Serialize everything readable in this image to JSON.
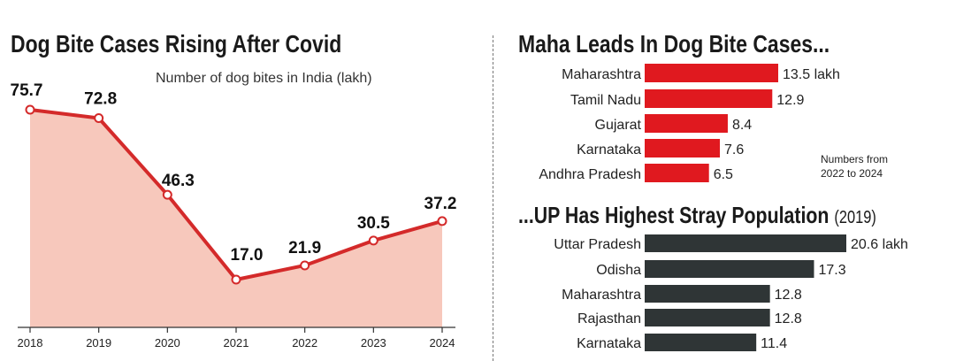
{
  "line_chart": {
    "title": "Dog Bite Cases Rising After Covid",
    "subtitle": "Number of dog bites in India (lakh)",
    "line_color": "#d42a2a",
    "fill_color": "#f7c8bc"
  },
  "bars_top": {
    "title": "Maha Leads In Dog Bite Cases...",
    "note_line1": "Numbers from",
    "note_line2": "2022 to 2024",
    "color": "#e0191f"
  },
  "bars_bottom": {
    "title": "...UP Has Highest Stray Population",
    "title_suffix": "(2019)",
    "color": "#2f3536"
  },
  "chart_data": [
    {
      "type": "area",
      "title": "Dog Bite Cases Rising After Covid",
      "subtitle": "Number of dog bites in India (lakh)",
      "x": [
        "2018",
        "2019",
        "2020",
        "2021",
        "2022",
        "2023",
        "2024"
      ],
      "values": [
        75.7,
        72.8,
        46.3,
        17.0,
        21.9,
        30.5,
        37.2
      ],
      "labels": [
        "75.7",
        "72.8",
        "46.3",
        "17.0",
        "21.9",
        "30.5",
        "37.2"
      ]
    },
    {
      "type": "bar",
      "orientation": "horizontal",
      "title": "Maha Leads In Dog Bite Cases...",
      "categories": [
        "Maharashtra",
        "Tamil Nadu",
        "Gujarat",
        "Karnataka",
        "Andhra Pradesh"
      ],
      "values": [
        13.5,
        12.9,
        8.4,
        7.6,
        6.5
      ],
      "labels": [
        "13.5 lakh",
        "12.9",
        "8.4",
        "7.6",
        "6.5"
      ]
    },
    {
      "type": "bar",
      "orientation": "horizontal",
      "title": "...UP Has Highest Stray Population (2019)",
      "categories": [
        "Uttar Pradesh",
        "Odisha",
        "Maharashtra",
        "Rajasthan",
        "Karnataka"
      ],
      "values": [
        20.6,
        17.3,
        12.8,
        12.8,
        11.4
      ],
      "labels": [
        "20.6 lakh",
        "17.3",
        "12.8",
        "12.8",
        "11.4"
      ]
    }
  ]
}
